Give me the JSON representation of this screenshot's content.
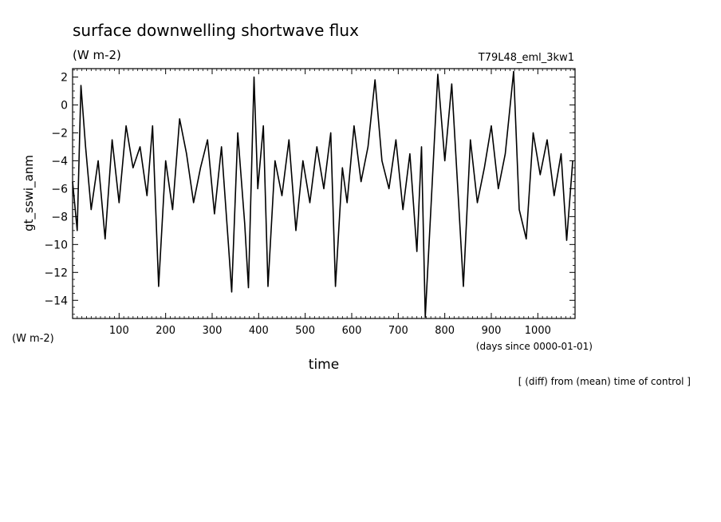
{
  "chart_data": {
    "type": "line",
    "title": "surface downwelling shortwave flux",
    "units_top": "(W m-2)",
    "run_label": "T79L48_eml_3kw1",
    "ylabel": "gt_sswi_anm",
    "units_left": "(W m-2)",
    "xlabel": "time",
    "xunit": "(days since 0000-01-01)",
    "footnote": "[ (diff) from (mean) time of control ]",
    "xlim": [
      0,
      1080
    ],
    "ylim": [
      -15.3,
      2.6
    ],
    "xticks": [
      100,
      200,
      300,
      400,
      500,
      600,
      700,
      800,
      900,
      1000
    ],
    "yticks": [
      2,
      0,
      -2,
      -4,
      -6,
      -8,
      -10,
      -12,
      -14
    ],
    "grid": false,
    "series": [
      {
        "color": "#000000",
        "x": [
          0,
          10,
          18,
          28,
          40,
          55,
          70,
          85,
          100,
          115,
          130,
          145,
          160,
          172,
          185,
          200,
          215,
          230,
          245,
          260,
          275,
          290,
          305,
          320,
          335,
          342,
          355,
          370,
          378,
          390,
          398,
          410,
          420,
          435,
          450,
          465,
          480,
          495,
          510,
          525,
          540,
          555,
          565,
          580,
          590,
          605,
          620,
          635,
          650,
          665,
          680,
          695,
          710,
          725,
          740,
          750,
          758,
          770,
          785,
          800,
          815,
          828,
          840,
          855,
          870,
          885,
          900,
          915,
          930,
          948,
          960,
          975,
          990,
          1005,
          1020,
          1035,
          1050,
          1062,
          1075
        ],
        "values": [
          -5.5,
          -9.0,
          1.4,
          -3.0,
          -7.5,
          -4.0,
          -9.6,
          -2.5,
          -7.0,
          -1.5,
          -4.5,
          -3.0,
          -6.5,
          -1.5,
          -13.0,
          -4.0,
          -7.5,
          -1.0,
          -3.5,
          -7.0,
          -4.5,
          -2.5,
          -7.8,
          -3.0,
          -10.0,
          -13.4,
          -2.0,
          -8.5,
          -13.1,
          2.0,
          -6.0,
          -1.5,
          -13.0,
          -4.0,
          -6.5,
          -2.5,
          -9.0,
          -4.0,
          -7.0,
          -3.0,
          -6.0,
          -2.0,
          -13.0,
          -4.5,
          -7.0,
          -1.5,
          -5.5,
          -3.0,
          1.8,
          -4.0,
          -6.0,
          -2.5,
          -7.5,
          -3.5,
          -10.5,
          -3.0,
          -15.2,
          -7.5,
          2.2,
          -4.0,
          1.5,
          -6.0,
          -13.0,
          -2.5,
          -7.0,
          -4.5,
          -1.5,
          -6.0,
          -3.5,
          2.4,
          -7.5,
          -9.6,
          -2.0,
          -5.0,
          -2.5,
          -6.5,
          -3.5,
          -9.7,
          -4.0
        ]
      }
    ]
  }
}
